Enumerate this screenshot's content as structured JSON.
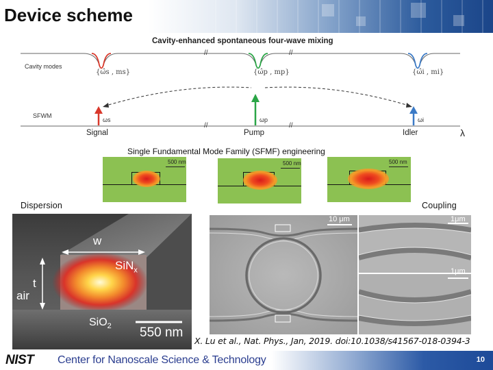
{
  "slide": {
    "title": "Device scheme",
    "page_number": "10"
  },
  "schematic": {
    "title": "Cavity-enhanced spontaneous four-wave mixing",
    "row_cavity_modes": "Cavity modes",
    "row_sfwm": "SFWM",
    "break_mark": "//",
    "modes": [
      {
        "label": "{ω̂s , ms}",
        "color": "#d9382b",
        "omega": "ωs",
        "name": "Signal"
      },
      {
        "label": "{ω̂p , mp}",
        "color": "#2aa546",
        "omega": "ωp",
        "name": "Pump"
      },
      {
        "label": "{ω̂i , mi}",
        "color": "#3b7ac6",
        "omega": "ωi",
        "name": "Idler"
      }
    ],
    "axis_symbol": "λ"
  },
  "sfmf": {
    "title": "Single Fundamental Mode Family (SFMF) engineering",
    "scale_labels": [
      "500 nm",
      "500 nm",
      "500 nm"
    ]
  },
  "labels": {
    "dispersion": "Dispersion",
    "coupling": "Coupling"
  },
  "waveguide": {
    "w": "w",
    "t": "t",
    "air": "air",
    "core": "SiN",
    "core_sub": "x",
    "substrate": "SiO",
    "substrate_sub": "2",
    "scale": "550 nm"
  },
  "sem": {
    "ring_scale": "10 μm",
    "zoom_scale_top": "1μm",
    "zoom_scale_bottom": "1μm"
  },
  "citation": "X. Lu et al., Nat. Phys., Jan, 2019. doi:10.1038/s41567-018-0394-3",
  "footer": {
    "logo": "NIST",
    "center": "Center for Nanoscale Science & Technology"
  }
}
